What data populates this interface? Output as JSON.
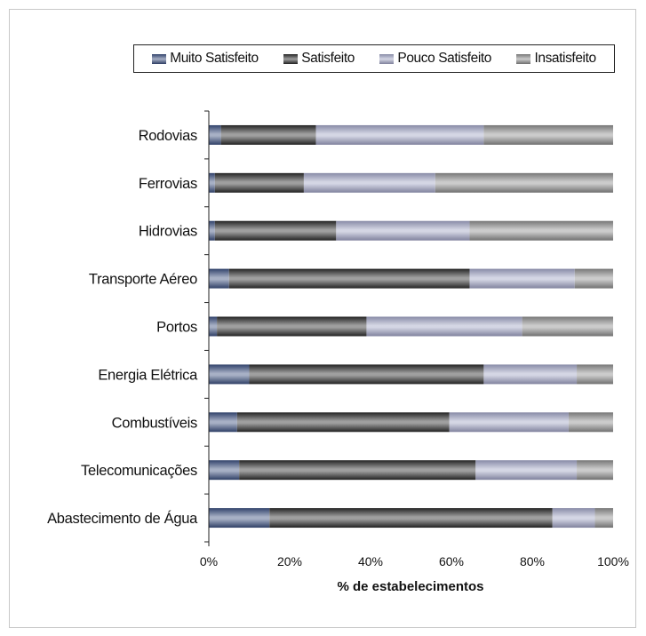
{
  "chart_data": {
    "type": "bar",
    "orientation": "horizontal",
    "stacked": true,
    "percent": true,
    "categories": [
      "Rodovias",
      "Ferrovias",
      "Hidrovias",
      "Transporte Aéreo",
      "Portos",
      "Energia Elétrica",
      "Combustíveis",
      "Telecomunicações",
      "Abastecimento de Água"
    ],
    "series": [
      {
        "name": "Muito Satisfeito",
        "color": "#3b4f7f",
        "values": [
          3,
          1.5,
          1.5,
          5,
          2,
          10,
          7,
          7.5,
          15
        ]
      },
      {
        "name": "Satisfeito",
        "color": "#2a2a2a",
        "values": [
          23.5,
          22,
          30,
          59.5,
          37,
          58,
          52.5,
          58.5,
          70
        ]
      },
      {
        "name": "Pouco Satisfeito",
        "color": "#a0a3c4",
        "values": [
          41.5,
          32.5,
          33,
          26,
          38.5,
          23,
          29.5,
          25,
          10.5
        ]
      },
      {
        "name": "Insatisfeito",
        "color": "#8c8c8c",
        "values": [
          32,
          44,
          35.5,
          9.5,
          22.5,
          9,
          11,
          9,
          4.5
        ]
      }
    ],
    "xlabel": "% de estabelecimentos",
    "ylabel": "",
    "xlim": [
      0,
      100
    ],
    "xticks": [
      "0%",
      "20%",
      "40%",
      "60%",
      "80%",
      "100%"
    ],
    "legend_position": "top",
    "grid": false
  }
}
